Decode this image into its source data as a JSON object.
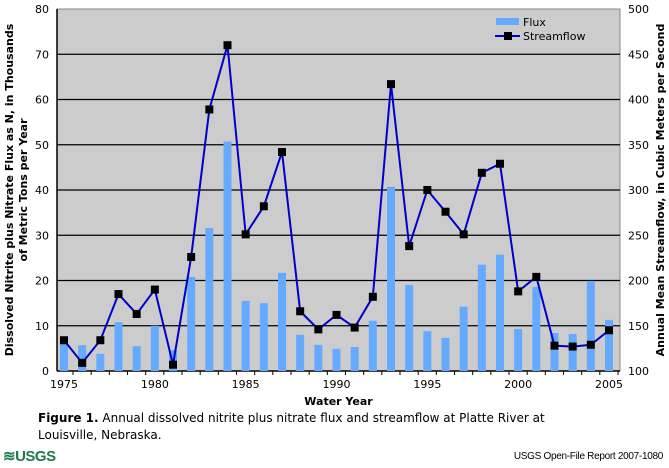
{
  "chart_data": {
    "type": "bar+line",
    "title": "",
    "xlabel": "Water Year",
    "ylabel_left": "Dissolved Nitrite plus Nitrate Flux as N, in Thousands of Metric Tons per Year",
    "ylabel_left_lines": [
      "Dissolved Nitrite plus Nitrate Flux as N, in Thousands",
      "of Metric Tons per Year"
    ],
    "ylabel_right": "Annual Mean Streamflow, in Cubic Meters per Second",
    "ylim_left": [
      0,
      80
    ],
    "ylim_right": [
      100,
      500
    ],
    "yticks_left": [
      "0",
      "10",
      "20",
      "30",
      "40",
      "50",
      "60",
      "70",
      "80"
    ],
    "yticks_right": [
      "100",
      "150",
      "200",
      "250",
      "300",
      "350",
      "400",
      "450",
      "500"
    ],
    "xticks": [
      "1975",
      "1980",
      "1985",
      "1990",
      "1995",
      "2000",
      "2005"
    ],
    "grid": true,
    "legend_position": "top-right",
    "x": [
      1975,
      1976,
      1977,
      1978,
      1979,
      1980,
      1981,
      1982,
      1983,
      1984,
      1985,
      1986,
      1987,
      1988,
      1989,
      1990,
      1991,
      1992,
      1993,
      1994,
      1995,
      1996,
      1997,
      1998,
      1999,
      2000,
      2001,
      2002,
      2003,
      2004,
      2005
    ],
    "series": [
      {
        "name": "Flux",
        "type": "bar",
        "axis": "left",
        "color": "#66aaff",
        "values": [
          6.9,
          5.7,
          3.8,
          10.8,
          5.5,
          10.0,
          4.6,
          20.8,
          31.6,
          50.7,
          15.5,
          15.0,
          21.7,
          8.0,
          5.8,
          4.9,
          5.3,
          11.1,
          40.7,
          19.0,
          8.8,
          7.3,
          14.2,
          23.5,
          25.7,
          9.3,
          18.6,
          8.4,
          8.2,
          19.9,
          11.3
        ]
      },
      {
        "name": "Streamflow",
        "type": "line",
        "axis": "right",
        "color": "#0000cc",
        "values": [
          134,
          109,
          134,
          185,
          163,
          190,
          107,
          226,
          389,
          460,
          251,
          282,
          342,
          166,
          146,
          162,
          148,
          182,
          417,
          238,
          300,
          276,
          251,
          319,
          329,
          188,
          204,
          128,
          127,
          129,
          145
        ]
      }
    ]
  },
  "caption": {
    "label": "Figure 1.",
    "text": " Annual dissolved nitrite plus nitrate flux and streamflow at Platte River at Louisville, Nebraska."
  },
  "footer": {
    "logo": "≋USGS",
    "report": "USGS Open-File Report 2007-1080"
  }
}
